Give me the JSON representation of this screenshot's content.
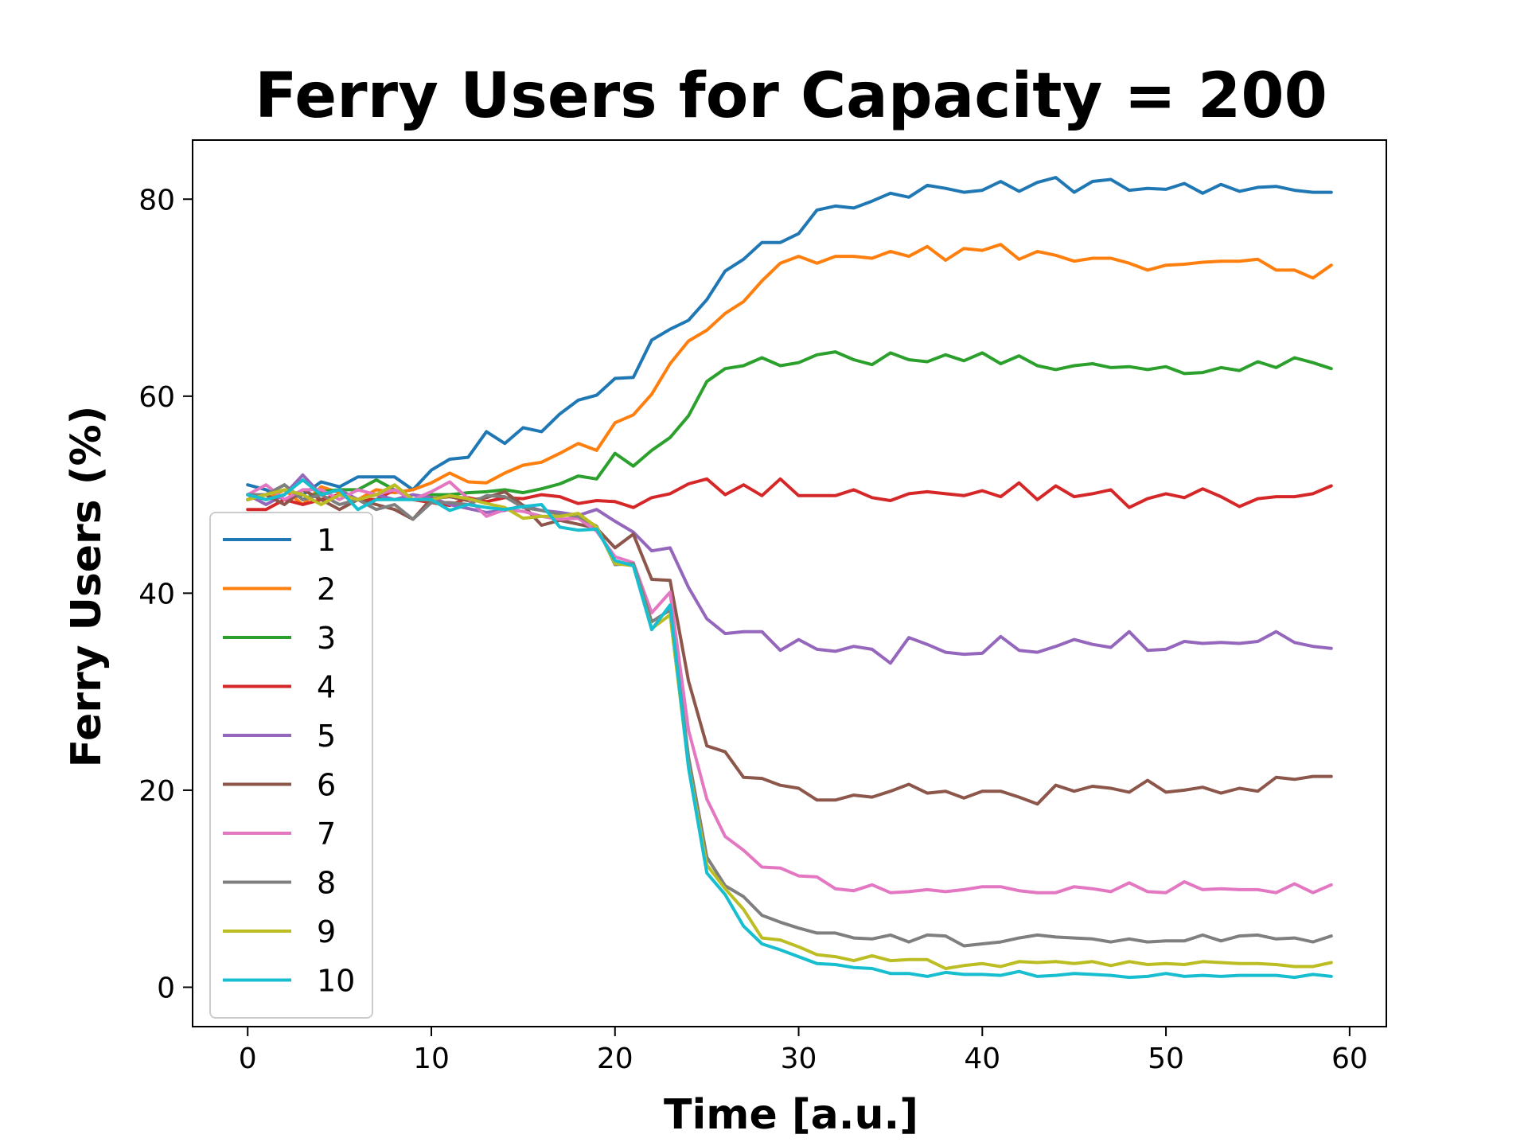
{
  "chart_data": {
    "type": "line",
    "title": "Ferry Users for Capacity = 200",
    "xlabel": "Time [a.u.]",
    "ylabel": "Ferry Users (%)",
    "xlim": [
      -3,
      62
    ],
    "ylim": [
      -4,
      86
    ],
    "xticks": [
      0,
      10,
      20,
      30,
      40,
      50,
      60
    ],
    "yticks": [
      0,
      20,
      40,
      60,
      80
    ],
    "grid": false,
    "legend_position": "lower-left",
    "series": [
      {
        "name": "1",
        "color": "#1f77b4",
        "values": [
          51,
          50.5,
          49.5,
          50,
          51.3,
          50.8,
          51.8,
          51.8,
          51.8,
          50.5,
          52.5,
          53.6,
          53.8,
          56.4,
          55.2,
          56.8,
          56.4,
          58.2,
          59.6,
          60.1,
          61.8,
          61.9,
          65.7,
          66.8,
          67.7,
          69.8,
          72.7,
          73.9,
          75.6,
          75.6,
          76.5,
          78.9,
          79.3,
          79.1,
          79.8,
          80.6,
          80.2,
          81.4,
          81.1,
          80.7,
          80.9,
          81.8,
          80.8,
          81.7,
          82.2,
          80.7,
          81.8,
          82.0,
          80.9,
          81.1,
          81.0,
          81.6,
          80.6,
          81.5,
          80.8,
          81.2,
          81.3,
          80.9,
          80.7,
          80.7
        ]
      },
      {
        "name": "2",
        "color": "#ff7f0e",
        "values": [
          50,
          49.5,
          50.5,
          49,
          50.8,
          50.2,
          49.5,
          50.5,
          50.2,
          50.5,
          51.2,
          52.2,
          51.3,
          51.2,
          52.2,
          53.0,
          53.3,
          54.2,
          55.2,
          54.5,
          57.3,
          58.1,
          60.2,
          63.3,
          65.6,
          66.7,
          68.4,
          69.6,
          71.7,
          73.5,
          74.2,
          73.5,
          74.2,
          74.2,
          74.0,
          74.7,
          74.2,
          75.2,
          73.8,
          75.0,
          74.8,
          75.4,
          73.9,
          74.7,
          74.3,
          73.7,
          74.0,
          74.0,
          73.5,
          72.8,
          73.3,
          73.4,
          73.6,
          73.7,
          73.7,
          73.9,
          72.8,
          72.8,
          72.0,
          73.3
        ]
      },
      {
        "name": "3",
        "color": "#2ca02c",
        "values": [
          49.5,
          50,
          51,
          49.5,
          50.3,
          50.5,
          50.5,
          51.5,
          50.5,
          49.5,
          50,
          50,
          50.2,
          50.3,
          50.5,
          50.2,
          50.6,
          51.1,
          51.9,
          51.6,
          54.2,
          52.9,
          54.5,
          55.8,
          58.0,
          61.5,
          62.8,
          63.1,
          63.9,
          63.1,
          63.4,
          64.2,
          64.5,
          63.7,
          63.2,
          64.4,
          63.7,
          63.5,
          64.2,
          63.6,
          64.4,
          63.3,
          64.1,
          63.1,
          62.7,
          63.1,
          63.3,
          62.9,
          63.0,
          62.7,
          63.0,
          62.3,
          62.4,
          62.9,
          62.6,
          63.5,
          62.9,
          63.9,
          63.4,
          62.8
        ]
      },
      {
        "name": "4",
        "color": "#d62728",
        "values": [
          48.5,
          48.5,
          49.5,
          49,
          49.5,
          50,
          49.5,
          49.5,
          50.5,
          49.5,
          49.2,
          48.9,
          49.7,
          49.3,
          49.7,
          49.6,
          50.0,
          49.8,
          49.1,
          49.4,
          49.3,
          48.7,
          49.7,
          50.1,
          51.1,
          51.6,
          50.0,
          51.0,
          49.9,
          51.6,
          49.9,
          49.9,
          49.9,
          50.5,
          49.7,
          49.4,
          50.1,
          50.3,
          50.1,
          49.9,
          50.4,
          49.8,
          51.2,
          49.5,
          50.9,
          49.8,
          50.1,
          50.5,
          48.7,
          49.6,
          50.1,
          49.7,
          50.6,
          49.8,
          48.8,
          49.6,
          49.8,
          49.8,
          50.1,
          50.9
        ]
      },
      {
        "name": "5",
        "color": "#9467bd",
        "values": [
          50,
          49,
          50,
          52,
          50,
          50.5,
          49.5,
          50,
          49.5,
          50,
          49.7,
          49.0,
          48.6,
          48.2,
          48.4,
          48.9,
          48.4,
          48.2,
          47.9,
          48.5,
          47.3,
          46.2,
          44.3,
          44.6,
          40.6,
          37.4,
          35.9,
          36.1,
          36.1,
          34.2,
          35.3,
          34.3,
          34.1,
          34.6,
          34.3,
          32.9,
          35.5,
          34.8,
          34.0,
          33.8,
          33.9,
          35.6,
          34.2,
          34.0,
          34.6,
          35.3,
          34.8,
          34.5,
          36.1,
          34.2,
          34.3,
          35.1,
          34.9,
          35.0,
          34.9,
          35.1,
          36.1,
          35.0,
          34.6,
          34.4
        ]
      },
      {
        "name": "6",
        "color": "#8c564b",
        "values": [
          49.5,
          50,
          49,
          50.5,
          49.5,
          48.5,
          49.5,
          49,
          48.5,
          47.5,
          49.6,
          49.8,
          49.4,
          49.7,
          50.3,
          48.9,
          46.9,
          47.4,
          47.0,
          46.6,
          44.6,
          46.0,
          41.4,
          41.3,
          31.1,
          24.5,
          23.9,
          21.3,
          21.2,
          20.5,
          20.2,
          19.0,
          19.0,
          19.5,
          19.3,
          19.9,
          20.6,
          19.7,
          19.9,
          19.2,
          19.9,
          19.9,
          19.3,
          18.6,
          20.5,
          19.9,
          20.4,
          20.2,
          19.8,
          21.0,
          19.8,
          20.0,
          20.3,
          19.7,
          20.2,
          19.9,
          21.3,
          21.1,
          21.4,
          21.4
        ]
      },
      {
        "name": "7",
        "color": "#e377c2",
        "values": [
          50,
          51,
          49.5,
          50.5,
          50.5,
          49.5,
          50.5,
          50,
          50.5,
          49.5,
          50.3,
          51.3,
          49.6,
          47.8,
          48.5,
          48.3,
          47.8,
          47.5,
          47.6,
          46.3,
          43.7,
          43.1,
          38.0,
          40.1,
          26.1,
          19.1,
          15.3,
          13.9,
          12.2,
          12.1,
          11.3,
          11.2,
          10.0,
          9.8,
          10.4,
          9.6,
          9.7,
          9.9,
          9.7,
          9.9,
          10.2,
          10.2,
          9.8,
          9.6,
          9.6,
          10.2,
          10.0,
          9.7,
          10.6,
          9.7,
          9.6,
          10.7,
          9.9,
          10.0,
          9.9,
          9.9,
          9.6,
          10.5,
          9.6,
          10.4
        ]
      },
      {
        "name": "8",
        "color": "#7f7f7f",
        "values": [
          50,
          50,
          51,
          49.5,
          50,
          49,
          49.5,
          48.5,
          49,
          47.5,
          49.2,
          49.2,
          49.0,
          49.9,
          49.8,
          48.7,
          48.4,
          48.0,
          47.8,
          46.8,
          42.9,
          43.0,
          37.1,
          38.3,
          23.4,
          13.2,
          10.3,
          9.2,
          7.3,
          6.6,
          6.0,
          5.5,
          5.5,
          5.0,
          4.9,
          5.3,
          4.6,
          5.3,
          5.2,
          4.2,
          4.4,
          4.6,
          5.0,
          5.3,
          5.1,
          5.0,
          4.9,
          4.6,
          4.9,
          4.6,
          4.7,
          4.7,
          5.3,
          4.7,
          5.2,
          5.3,
          4.9,
          5.0,
          4.6,
          5.2
        ]
      },
      {
        "name": "9",
        "color": "#bcbd22",
        "values": [
          49.5,
          50,
          50.5,
          50,
          49,
          50,
          49.5,
          50,
          51,
          49.5,
          49.5,
          49.9,
          49.6,
          49.1,
          48.7,
          47.6,
          47.8,
          47.8,
          48.1,
          46.7,
          43.0,
          42.8,
          36.4,
          37.8,
          22.5,
          12.4,
          10.0,
          7.9,
          5.0,
          4.8,
          4.1,
          3.3,
          3.1,
          2.7,
          3.2,
          2.7,
          2.8,
          2.8,
          1.9,
          2.2,
          2.4,
          2.1,
          2.6,
          2.5,
          2.6,
          2.4,
          2.6,
          2.2,
          2.6,
          2.3,
          2.4,
          2.3,
          2.6,
          2.5,
          2.4,
          2.4,
          2.3,
          2.1,
          2.1,
          2.5
        ]
      },
      {
        "name": "10",
        "color": "#17becf",
        "values": [
          50,
          49.5,
          50,
          51.5,
          50,
          50.5,
          48.5,
          49.5,
          49.5,
          49.5,
          49.5,
          48.4,
          49.0,
          48.7,
          48.5,
          48.8,
          49.0,
          46.7,
          46.4,
          46.5,
          43.3,
          42.8,
          36.3,
          38.8,
          22.3,
          11.6,
          9.4,
          6.2,
          4.4,
          3.8,
          3.1,
          2.4,
          2.3,
          2.0,
          1.9,
          1.4,
          1.4,
          1.1,
          1.5,
          1.3,
          1.3,
          1.2,
          1.6,
          1.1,
          1.2,
          1.4,
          1.3,
          1.2,
          1.0,
          1.1,
          1.4,
          1.1,
          1.2,
          1.1,
          1.2,
          1.2,
          1.2,
          1.0,
          1.3,
          1.1
        ]
      }
    ]
  }
}
